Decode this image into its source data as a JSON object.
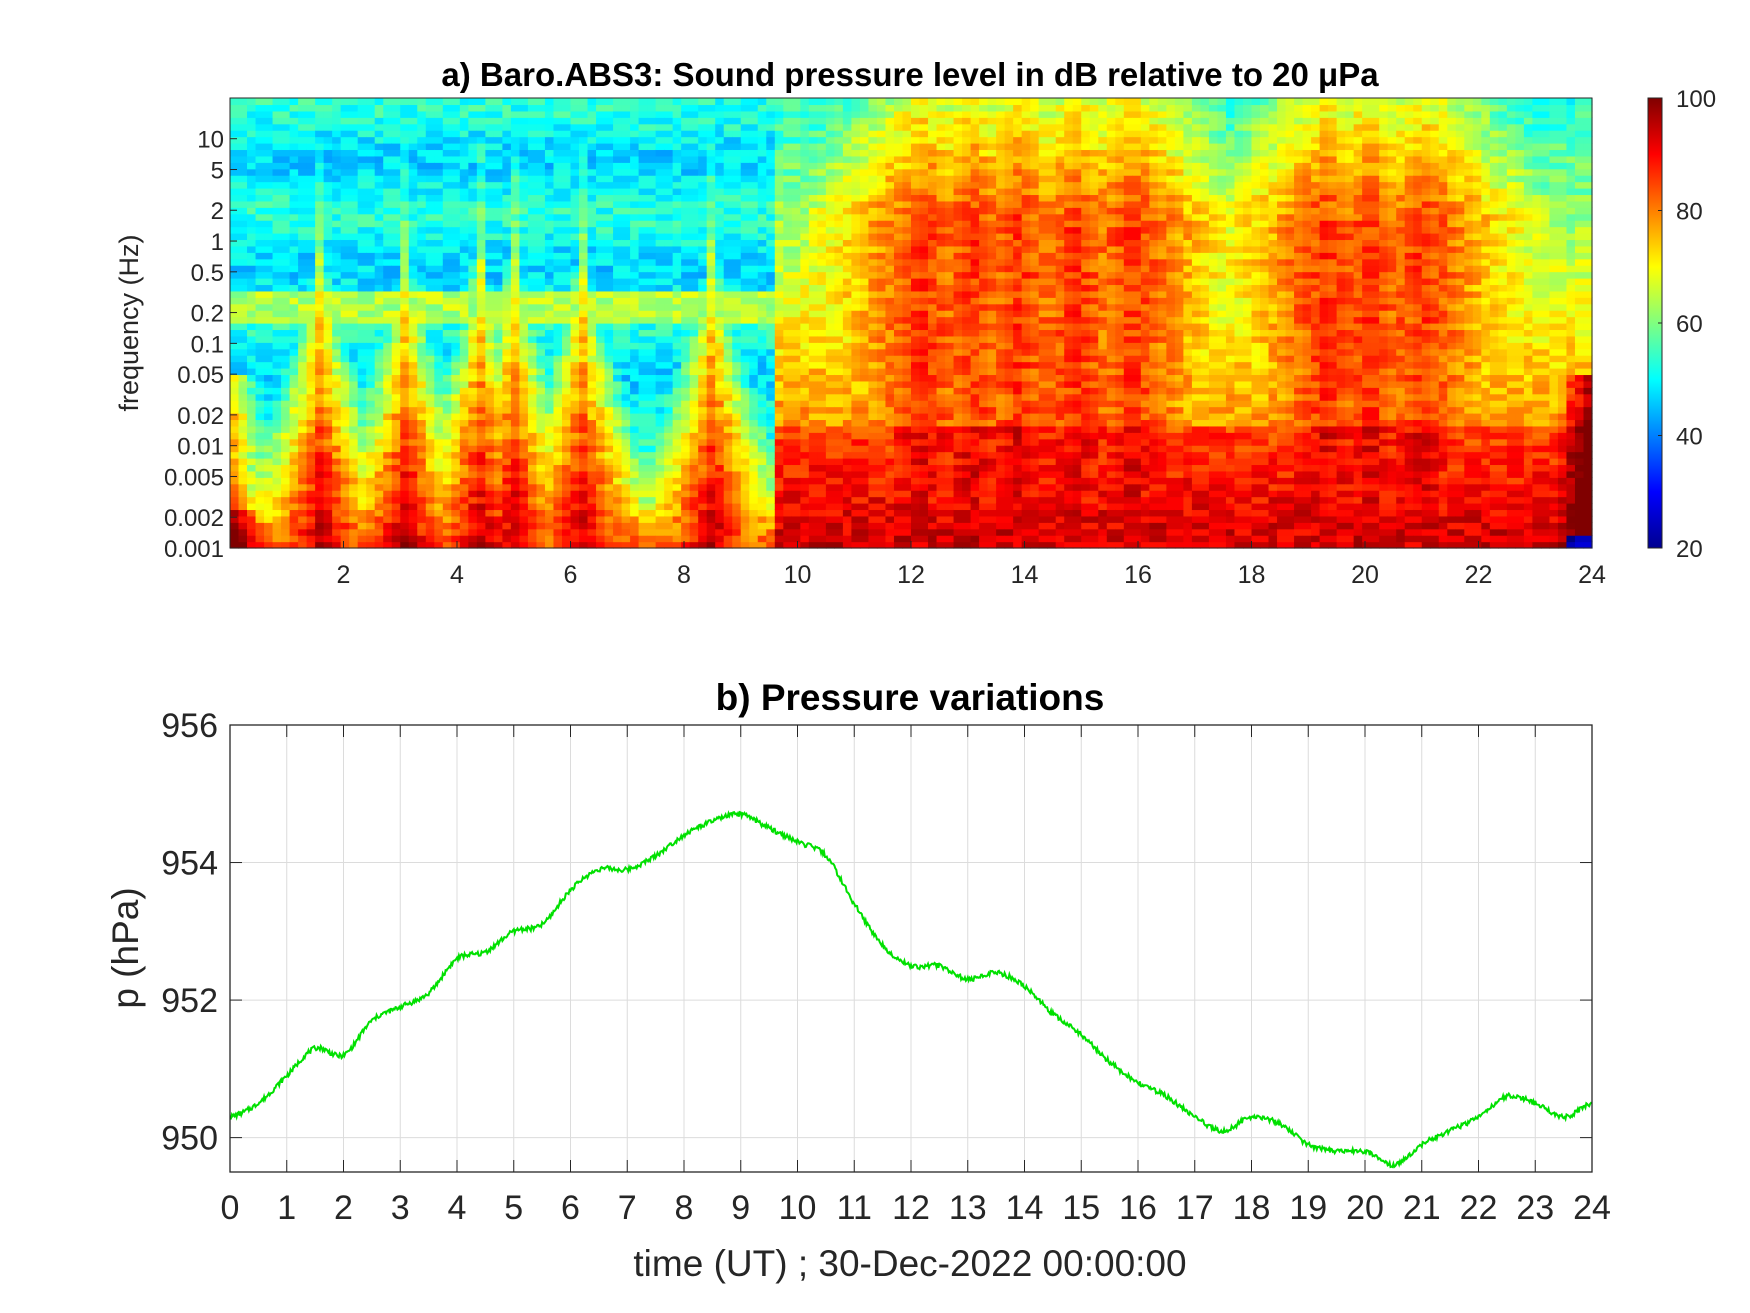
{
  "chart_data": [
    {
      "type": "heatmap",
      "title": "a) Baro.ABS3: Sound pressure level in dB relative to 20 μPa",
      "ylabel": "frequency (Hz)",
      "xlabel": "",
      "x_ticks": [
        2,
        4,
        6,
        8,
        10,
        12,
        14,
        16,
        18,
        20,
        22,
        24
      ],
      "x_range": [
        0,
        24
      ],
      "y_scale": "log",
      "y_range": [
        0.001,
        25
      ],
      "y_ticks": [
        0.001,
        0.002,
        0.005,
        0.01,
        0.02,
        0.05,
        0.1,
        0.2,
        0.5,
        1,
        2,
        5,
        10
      ],
      "y_tick_labels": [
        "0.001",
        "0.002",
        "0.005",
        "0.01",
        "0.02",
        "0.05",
        "0.1",
        "0.2",
        "0.5",
        "1",
        "2",
        "5",
        "10"
      ],
      "colorbar": {
        "colormap": "jet",
        "range": [
          20,
          100
        ],
        "ticks": [
          20,
          40,
          60,
          80,
          100
        ],
        "tick_labels": [
          "20",
          "40",
          "60",
          "80",
          "100"
        ]
      },
      "grid": false
    },
    {
      "type": "line",
      "title": "b) Pressure variations",
      "xlabel": "time (UT) ; 30-Dec-2022 00:00:00",
      "ylabel": "p (hPa)",
      "x_range": [
        0,
        24
      ],
      "y_range": [
        949.5,
        956
      ],
      "x_ticks": [
        0,
        1,
        2,
        3,
        4,
        5,
        6,
        7,
        8,
        9,
        10,
        11,
        12,
        13,
        14,
        15,
        16,
        17,
        18,
        19,
        20,
        21,
        22,
        23,
        24
      ],
      "x_tick_labels": [
        "0",
        "1",
        "2",
        "3",
        "4",
        "5",
        "6",
        "7",
        "8",
        "9",
        "10",
        "11",
        "12",
        "13",
        "14",
        "15",
        "16",
        "17",
        "18",
        "19",
        "20",
        "21",
        "22",
        "23",
        "24"
      ],
      "y_ticks": [
        950,
        952,
        954,
        956
      ],
      "y_tick_labels": [
        "950",
        "952",
        "954",
        "956"
      ],
      "grid": true,
      "series": [
        {
          "color": "#00e000",
          "x": [
            0,
            0.5,
            1,
            1.5,
            2,
            2.5,
            3,
            3.5,
            4,
            4.5,
            5,
            5.5,
            6,
            6.5,
            7,
            7.5,
            8,
            8.5,
            9,
            9.5,
            10,
            10.5,
            11,
            11.5,
            12,
            12.5,
            13,
            13.5,
            14,
            14.5,
            15,
            15.5,
            16,
            16.5,
            17,
            17.5,
            18,
            18.5,
            19,
            19.5,
            20,
            20.5,
            21,
            21.5,
            22,
            22.5,
            23,
            23.5,
            24
          ],
          "y": [
            950.3,
            950.5,
            950.9,
            951.3,
            951.2,
            951.7,
            951.9,
            952.1,
            952.6,
            952.7,
            953.0,
            953.1,
            953.6,
            953.9,
            953.9,
            954.1,
            954.4,
            954.6,
            954.7,
            954.5,
            954.3,
            954.1,
            953.4,
            952.8,
            952.5,
            952.5,
            952.3,
            952.4,
            952.2,
            951.8,
            951.5,
            951.1,
            950.8,
            950.6,
            950.3,
            950.1,
            950.3,
            950.2,
            949.9,
            949.8,
            949.8,
            949.6,
            949.9,
            950.1,
            950.3,
            950.6,
            950.5,
            950.3,
            950.5
          ]
        }
      ]
    }
  ]
}
